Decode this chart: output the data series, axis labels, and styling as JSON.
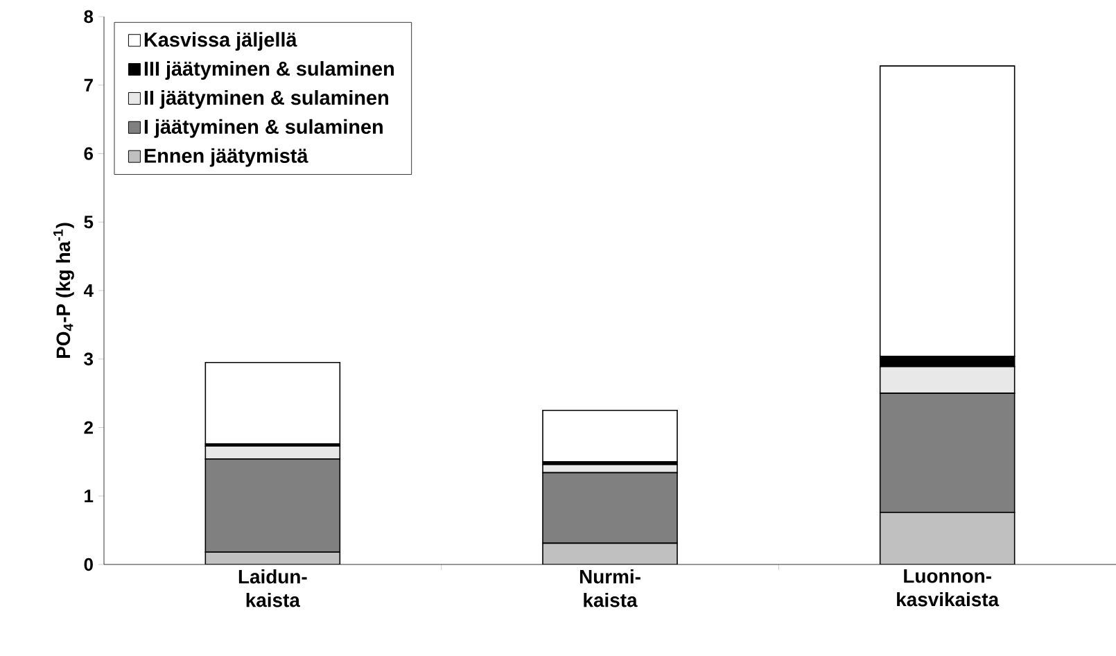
{
  "chart_data": {
    "type": "bar",
    "stacked": true,
    "ylabel": "PO$_{4}$-P (kg ha$^{-1}$)",
    "categories": [
      "Laidun-kaista",
      "Nurmi-kaista",
      "Luonnon-kasvikaista"
    ],
    "series": [
      {
        "name": "Ennen jäätymistä",
        "color": "#c0c0c0",
        "values": [
          0.18,
          0.31,
          0.76
        ]
      },
      {
        "name": "I jäätyminen & sulaminen",
        "color": "#808080",
        "values": [
          1.36,
          1.03,
          1.74
        ]
      },
      {
        "name": "II jäätyminen & sulaminen",
        "color": "#e8e8e8",
        "values": [
          0.19,
          0.12,
          0.39
        ]
      },
      {
        "name": "III jäätyminen & sulaminen",
        "color": "#000000",
        "values": [
          0.03,
          0.04,
          0.15
        ]
      },
      {
        "name": "Kasvissa jäljellä",
        "color": "#ffffff",
        "values": [
          1.19,
          0.75,
          4.24
        ]
      }
    ],
    "ylim": [
      0,
      8
    ],
    "yticks": [
      0,
      1,
      2,
      3,
      4,
      5,
      6,
      7,
      8
    ],
    "legend": "top left",
    "grid": false
  }
}
